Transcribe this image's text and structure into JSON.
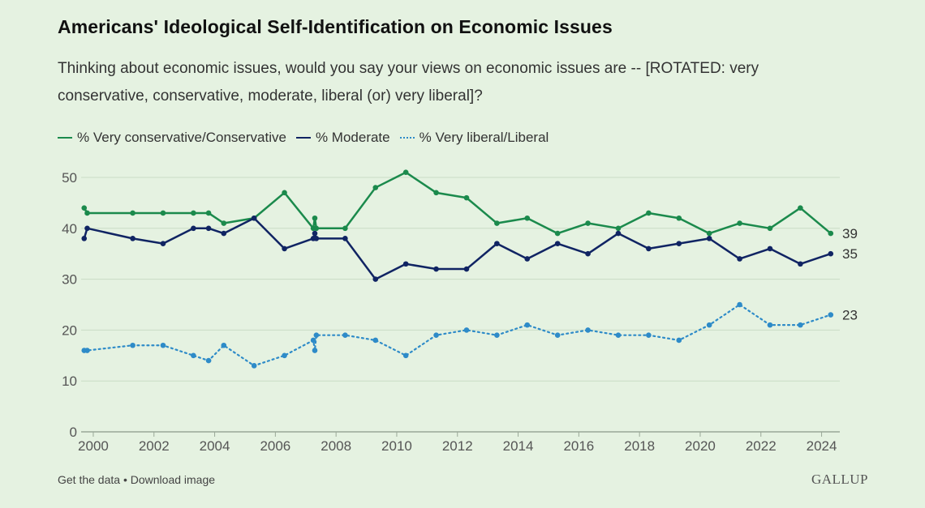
{
  "title": "Americans' Ideological Self-Identification on Economic Issues",
  "subtitle": "Thinking about economic issues, would you say your views on economic issues are -- [ROTATED: very conservative, conservative, moderate, liberal (or) very liberal]?",
  "footer": {
    "get_data": "Get the data",
    "separator": "•",
    "download": "Download image"
  },
  "logo": "GALLUP",
  "colors": {
    "background": "#e5f2e1",
    "conservative": "#1b8a4c",
    "moderate": "#102463",
    "liberal": "#2e8bc8",
    "grid": "#c9dcc5",
    "axis_text": "#555555"
  },
  "chart_data": {
    "type": "line",
    "title": "Americans' Ideological Self-Identification on Economic Issues",
    "xlim": [
      1999.6,
      2024.6
    ],
    "ylim": [
      0,
      50
    ],
    "x_ticks": [
      "2000",
      "2002",
      "2004",
      "2006",
      "2008",
      "2010",
      "2012",
      "2014",
      "2016",
      "2018",
      "2020",
      "2022",
      "2024"
    ],
    "y_ticks": [
      "0",
      "10",
      "20",
      "30",
      "40",
      "50"
    ],
    "grid": "horizontal",
    "legend_position": "top-left",
    "series": [
      {
        "name": "% Very conservative/Conservative",
        "style": "solid",
        "end_label": "39",
        "points": [
          [
            1999.7,
            44
          ],
          [
            1999.8,
            43
          ],
          [
            2001.3,
            43
          ],
          [
            2002.3,
            43
          ],
          [
            2003.3,
            43
          ],
          [
            2003.8,
            43
          ],
          [
            2004.3,
            41
          ],
          [
            2005.3,
            42
          ],
          [
            2006.3,
            47
          ],
          [
            2007.25,
            40
          ],
          [
            2007.3,
            42
          ],
          [
            2007.35,
            40
          ],
          [
            2008.3,
            40
          ],
          [
            2009.3,
            48
          ],
          [
            2010.3,
            51
          ],
          [
            2011.3,
            47
          ],
          [
            2012.3,
            46
          ],
          [
            2013.3,
            41
          ],
          [
            2014.3,
            42
          ],
          [
            2015.3,
            39
          ],
          [
            2016.3,
            41
          ],
          [
            2017.3,
            40
          ],
          [
            2018.3,
            43
          ],
          [
            2019.3,
            42
          ],
          [
            2020.3,
            39
          ],
          [
            2021.3,
            41
          ],
          [
            2022.3,
            40
          ],
          [
            2023.3,
            44
          ],
          [
            2024.3,
            39
          ]
        ]
      },
      {
        "name": "% Moderate",
        "style": "solid",
        "end_label": "35",
        "points": [
          [
            1999.7,
            38
          ],
          [
            1999.8,
            40
          ],
          [
            2001.3,
            38
          ],
          [
            2002.3,
            37
          ],
          [
            2003.3,
            40
          ],
          [
            2003.8,
            40
          ],
          [
            2004.3,
            39
          ],
          [
            2005.3,
            42
          ],
          [
            2006.3,
            36
          ],
          [
            2007.25,
            38
          ],
          [
            2007.3,
            39
          ],
          [
            2007.35,
            38
          ],
          [
            2008.3,
            38
          ],
          [
            2009.3,
            30
          ],
          [
            2010.3,
            33
          ],
          [
            2011.3,
            32
          ],
          [
            2012.3,
            32
          ],
          [
            2013.3,
            37
          ],
          [
            2014.3,
            34
          ],
          [
            2015.3,
            37
          ],
          [
            2016.3,
            35
          ],
          [
            2017.3,
            39
          ],
          [
            2018.3,
            36
          ],
          [
            2019.3,
            37
          ],
          [
            2020.3,
            38
          ],
          [
            2021.3,
            34
          ],
          [
            2022.3,
            36
          ],
          [
            2023.3,
            33
          ],
          [
            2024.3,
            35
          ]
        ]
      },
      {
        "name": "% Very liberal/Liberal",
        "style": "dotted",
        "end_label": "23",
        "points": [
          [
            1999.7,
            16
          ],
          [
            1999.8,
            16
          ],
          [
            2001.3,
            17
          ],
          [
            2002.3,
            17
          ],
          [
            2003.3,
            15
          ],
          [
            2003.8,
            14
          ],
          [
            2004.3,
            17
          ],
          [
            2005.3,
            13
          ],
          [
            2006.3,
            15
          ],
          [
            2007.25,
            18
          ],
          [
            2007.3,
            16
          ],
          [
            2007.35,
            19
          ],
          [
            2008.3,
            19
          ],
          [
            2009.3,
            18
          ],
          [
            2010.3,
            15
          ],
          [
            2011.3,
            19
          ],
          [
            2012.3,
            20
          ],
          [
            2013.3,
            19
          ],
          [
            2014.3,
            21
          ],
          [
            2015.3,
            19
          ],
          [
            2016.3,
            20
          ],
          [
            2017.3,
            19
          ],
          [
            2018.3,
            19
          ],
          [
            2019.3,
            18
          ],
          [
            2020.3,
            21
          ],
          [
            2021.3,
            25
          ],
          [
            2022.3,
            21
          ],
          [
            2023.3,
            21
          ],
          [
            2024.3,
            23
          ]
        ]
      }
    ]
  }
}
